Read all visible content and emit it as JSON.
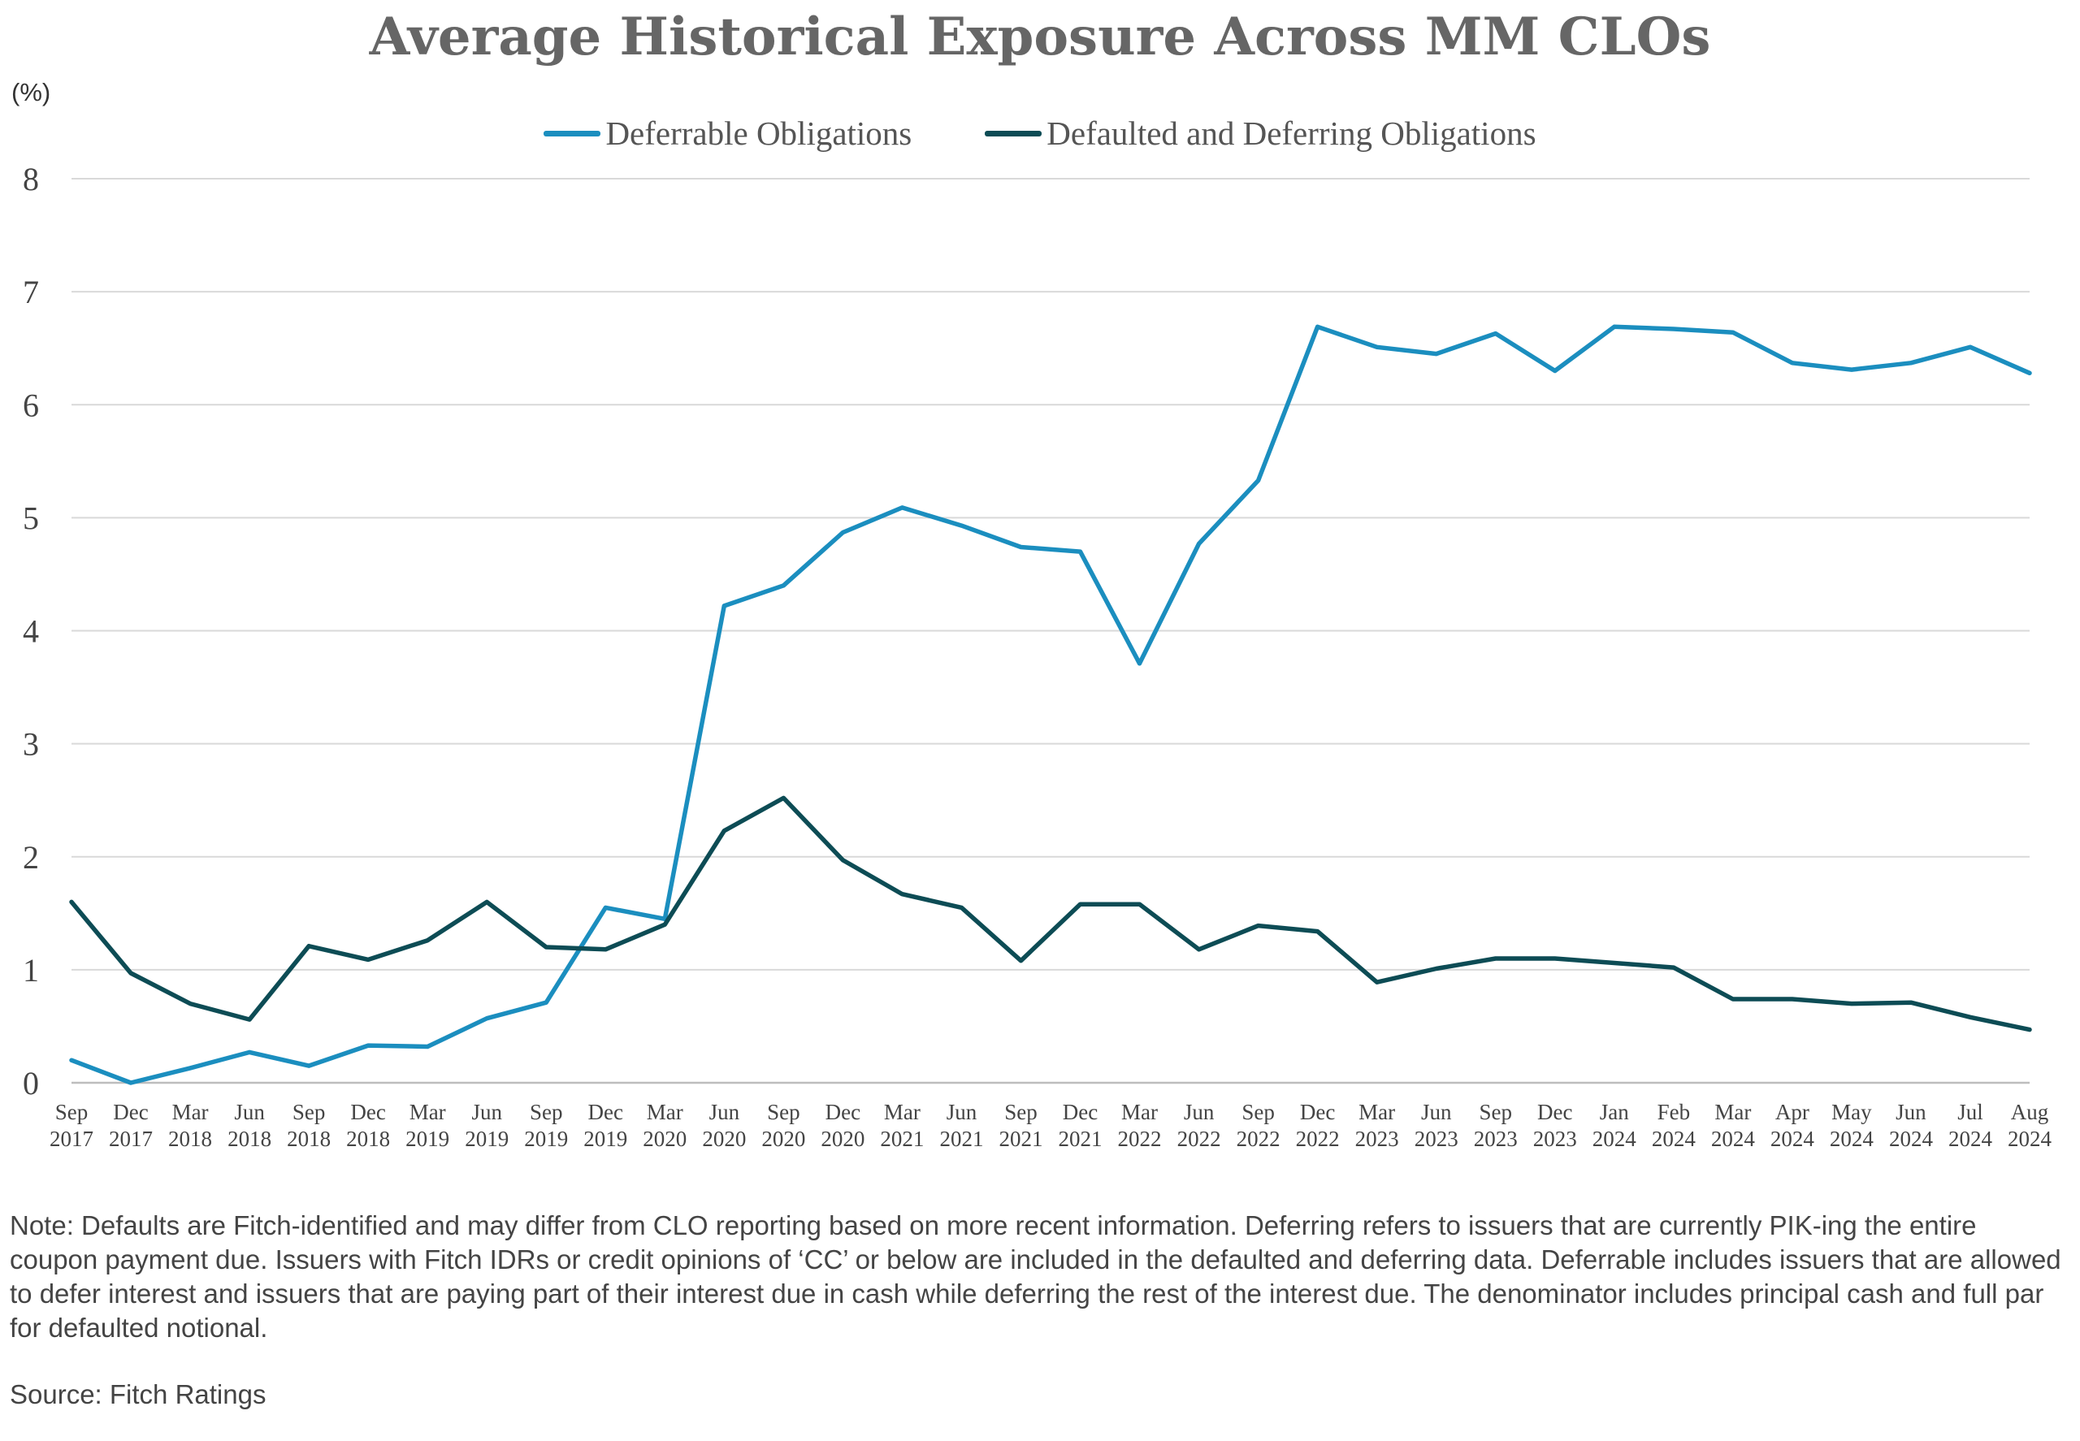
{
  "chart_data": {
    "type": "line",
    "title": "Average Historical Exposure Across MM CLOs",
    "ylabel": "(%)",
    "xlabel": "",
    "ylim": [
      0,
      8
    ],
    "yticks": [
      0,
      1,
      2,
      3,
      4,
      5,
      6,
      7,
      8
    ],
    "grid": true,
    "legend_position": "top-center",
    "categories": [
      [
        "Sep",
        "2017"
      ],
      [
        "Dec",
        "2017"
      ],
      [
        "Mar",
        "2018"
      ],
      [
        "Jun",
        "2018"
      ],
      [
        "Sep",
        "2018"
      ],
      [
        "Dec",
        "2018"
      ],
      [
        "Mar",
        "2019"
      ],
      [
        "Jun",
        "2019"
      ],
      [
        "Sep",
        "2019"
      ],
      [
        "Dec",
        "2019"
      ],
      [
        "Mar",
        "2020"
      ],
      [
        "Jun",
        "2020"
      ],
      [
        "Sep",
        "2020"
      ],
      [
        "Dec",
        "2020"
      ],
      [
        "Mar",
        "2021"
      ],
      [
        "Jun",
        "2021"
      ],
      [
        "Sep",
        "2021"
      ],
      [
        "Dec",
        "2021"
      ],
      [
        "Mar",
        "2022"
      ],
      [
        "Jun",
        "2022"
      ],
      [
        "Sep",
        "2022"
      ],
      [
        "Dec",
        "2022"
      ],
      [
        "Mar",
        "2023"
      ],
      [
        "Jun",
        "2023"
      ],
      [
        "Sep",
        "2023"
      ],
      [
        "Dec",
        "2023"
      ],
      [
        "Jan",
        "2024"
      ],
      [
        "Feb",
        "2024"
      ],
      [
        "Mar",
        "2024"
      ],
      [
        "Apr",
        "2024"
      ],
      [
        "May",
        "2024"
      ],
      [
        "Jun",
        "2024"
      ],
      [
        "Jul",
        "2024"
      ],
      [
        "Aug",
        "2024"
      ]
    ],
    "series": [
      {
        "name": "Deferrable Obligations",
        "color": "#1b8ebf",
        "values": [
          0.2,
          0.0,
          0.13,
          0.27,
          0.15,
          0.33,
          0.32,
          0.57,
          0.71,
          1.55,
          1.45,
          4.22,
          4.4,
          4.87,
          5.09,
          4.93,
          4.74,
          4.7,
          3.71,
          4.77,
          5.33,
          6.69,
          6.51,
          6.45,
          6.63,
          6.3,
          6.69,
          6.67,
          6.64,
          6.37,
          6.31,
          6.37,
          6.51,
          6.28
        ]
      },
      {
        "name": "Defaulted and Deferring Obligations",
        "color": "#0d4c55",
        "values": [
          1.6,
          0.97,
          0.7,
          0.56,
          1.21,
          1.09,
          1.26,
          1.6,
          1.2,
          1.18,
          1.4,
          2.23,
          2.52,
          1.97,
          1.67,
          1.55,
          1.08,
          1.58,
          1.58,
          1.18,
          1.39,
          1.34,
          0.89,
          1.01,
          1.1,
          1.1,
          1.06,
          1.02,
          0.74,
          0.74,
          0.7,
          0.71,
          0.58,
          0.47
        ]
      }
    ]
  },
  "note": "Note: Defaults are Fitch-identified and may differ from CLO reporting based on more recent information.  Deferring refers to issuers that are currently PIK-ing the entire coupon payment due.  Issuers with Fitch IDRs or credit opinions of ‘CC’ or below are included in the defaulted and deferring data. Deferrable includes issuers that are allowed to defer interest and issuers that are paying part of their interest due in cash while deferring the rest of the interest due. The denominator includes principal cash and full par for defaulted notional.",
  "source": "Source: Fitch Ratings"
}
